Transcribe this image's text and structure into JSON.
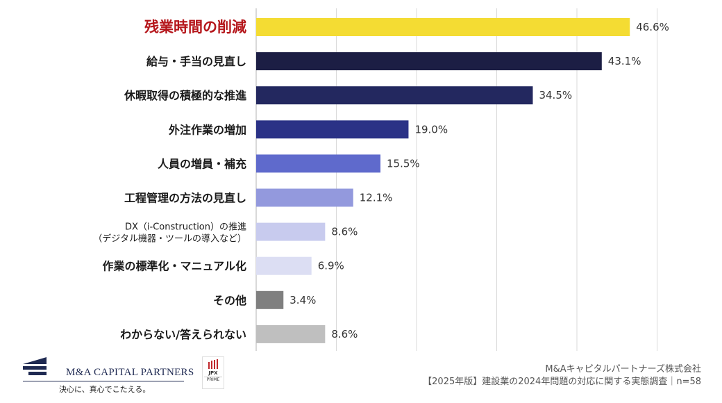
{
  "chart_data": {
    "type": "bar",
    "orientation": "horizontal",
    "categories": [
      "残業時間の削減",
      "給与・手当の見直し",
      "休暇取得の積極的な推進",
      "外注作業の増加",
      "人員の増員・補充",
      "工程管理の方法の見直し",
      "DX(i-Construction)の推進\n(デジタル機器・ツールの導入など)",
      "作業の標準化・マニュアル化",
      "その他",
      "わからない/答えられない"
    ],
    "category_lines": [
      [
        "残業時間の削減"
      ],
      [
        "給与・手当の見直し"
      ],
      [
        "休暇取得の積極的な推進"
      ],
      [
        "外注作業の増加"
      ],
      [
        "人員の増員・補充"
      ],
      [
        "工程管理の方法の見直し"
      ],
      [
        "DX（i-Construction）の推進",
        "（デジタル機器・ツールの導入など）"
      ],
      [
        "作業の標準化・マニュアル化"
      ],
      [
        "その他"
      ],
      [
        "わからない/答えられない"
      ]
    ],
    "values": [
      46.6,
      43.1,
      34.5,
      19.0,
      15.5,
      12.1,
      8.6,
      6.9,
      3.4,
      8.6
    ],
    "data_labels": [
      "46.6%",
      "43.1%",
      "34.5%",
      "19.0%",
      "15.5%",
      "12.1%",
      "8.6%",
      "6.9%",
      "3.4%",
      "8.6%"
    ],
    "colors": [
      "#f4dc33",
      "#1c1e44",
      "#23285f",
      "#2b3286",
      "#5f6acc",
      "#9399dd",
      "#c8cbee",
      "#dcdef3",
      "#7f7f7f",
      "#bfbfbf"
    ],
    "highlight_color": "#b5161b",
    "xlim": [
      0,
      50
    ],
    "gridlines": [
      10,
      20,
      30,
      40,
      50
    ],
    "grid": true,
    "title": "",
    "xlabel": "",
    "ylabel": ""
  },
  "branding": {
    "logo_text": "M&A CAPITAL PARTNERS",
    "tagline": "決心に、真心でこたえる。",
    "jpx_badge": "JPX",
    "jpx_sub": "PRIME"
  },
  "footer": {
    "company": "M&Aキャピタルパートナーズ株式会社",
    "source": "【2025年版】建設業の2024年問題の対応に関する実態調査｜n=58"
  }
}
